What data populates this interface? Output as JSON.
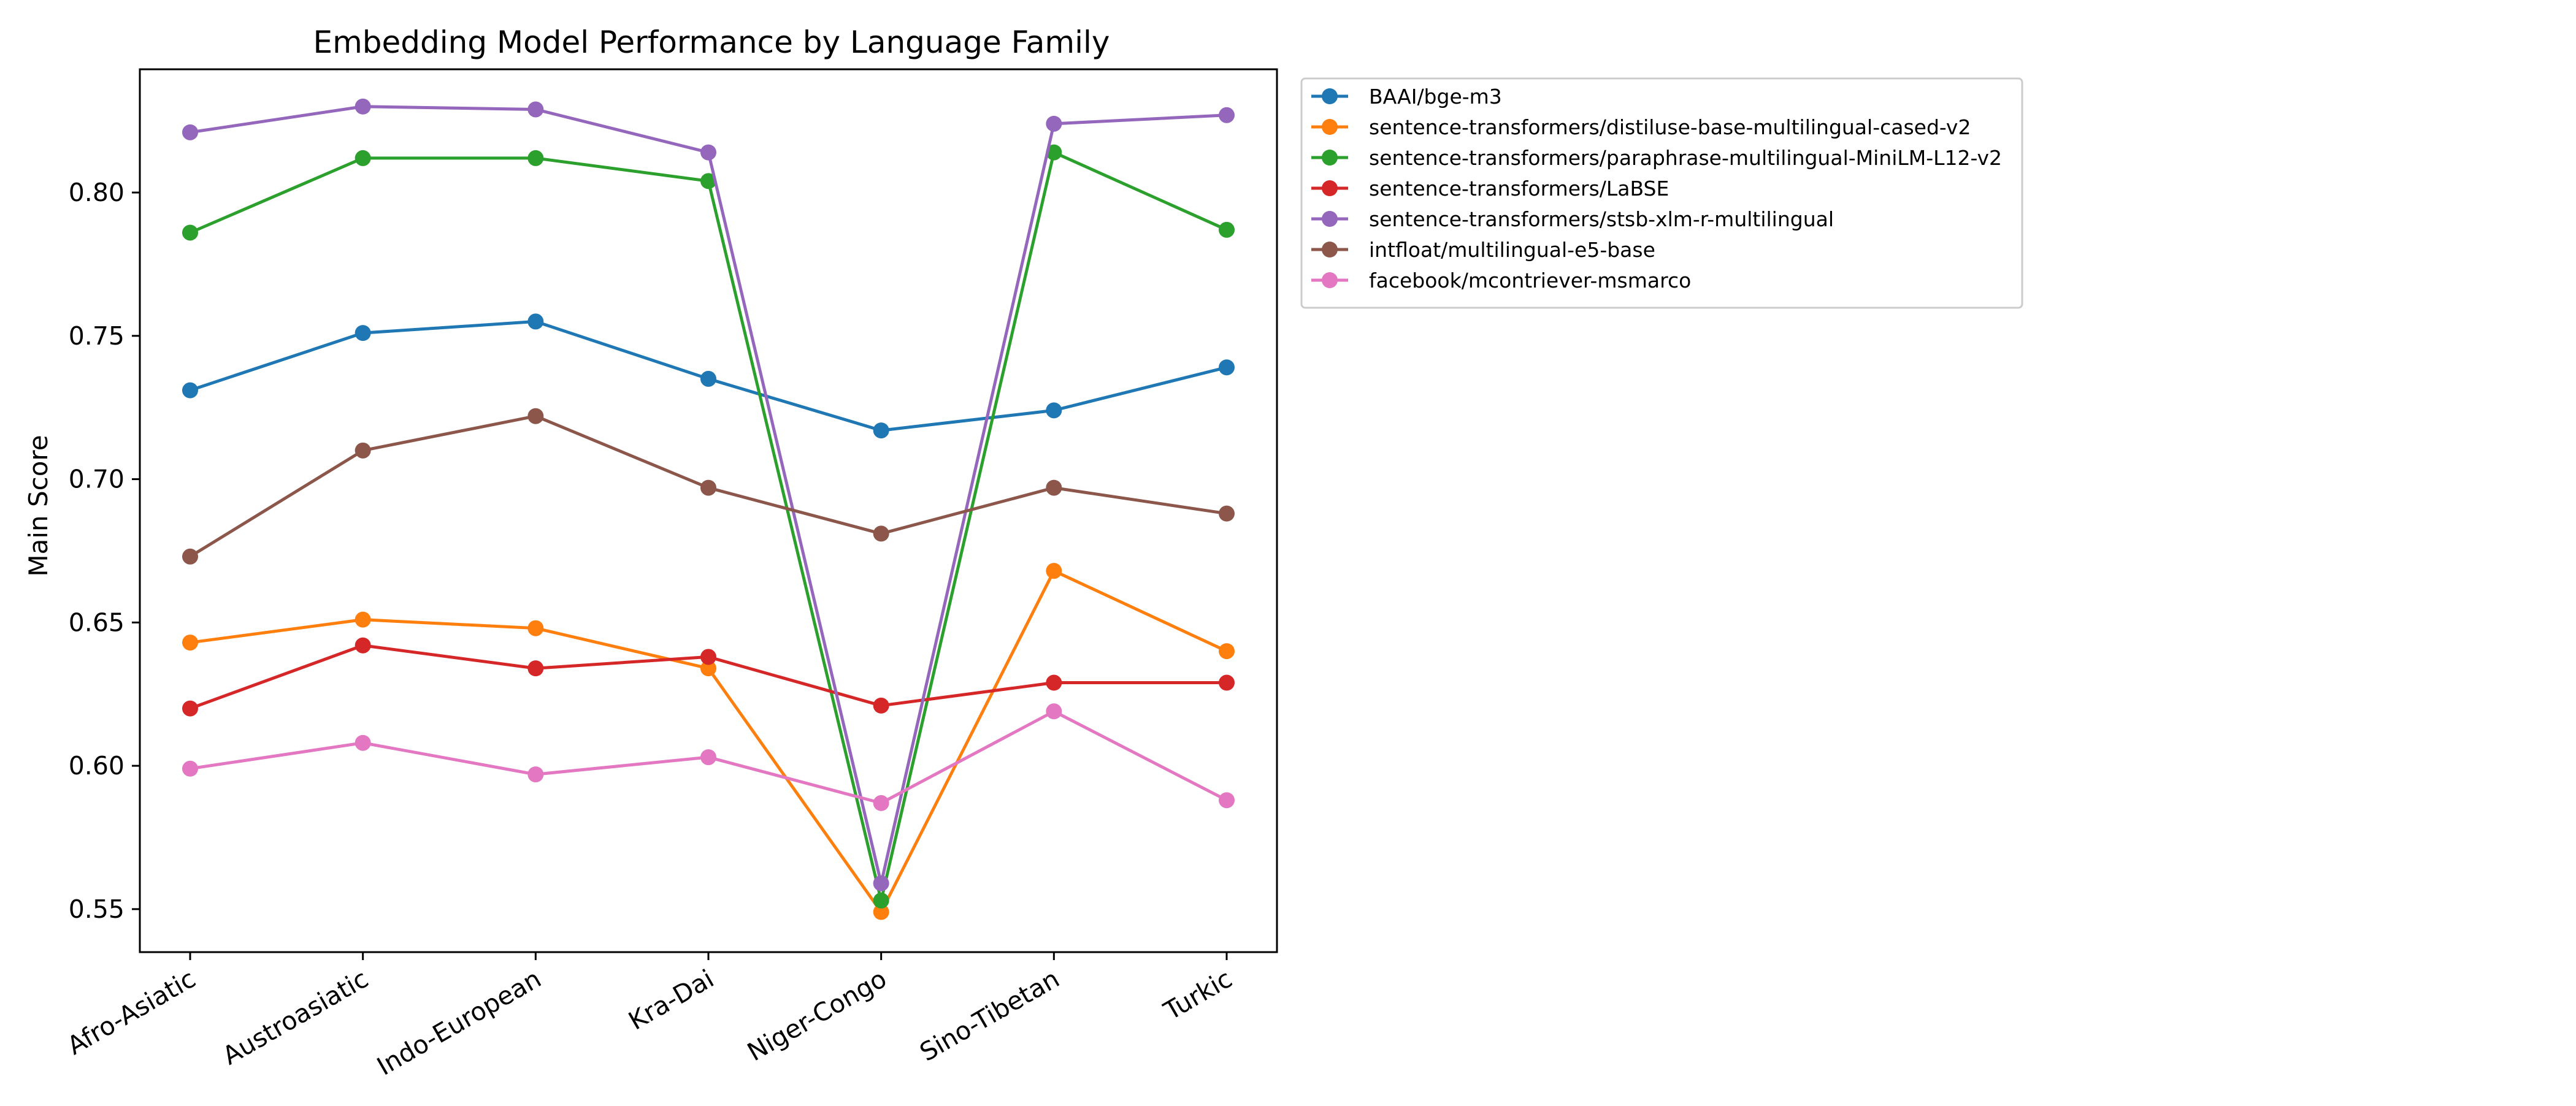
{
  "chart_data": {
    "type": "line",
    "title": "Embedding Model Performance by Language Family",
    "xlabel": "",
    "ylabel": "Main Score",
    "categories": [
      "Afro-Asiatic",
      "Austroasiatic",
      "Indo-European",
      "Kra-Dai",
      "Niger-Congo",
      "Sino-Tibetan",
      "Turkic"
    ],
    "ylim": [
      0.535,
      0.843
    ],
    "yticks": [
      0.55,
      0.6,
      0.65,
      0.7,
      0.75,
      0.8
    ],
    "ytick_labels": [
      "0.55",
      "0.60",
      "0.65",
      "0.70",
      "0.75",
      "0.80"
    ],
    "grid": false,
    "legend_placement": "outside upper right",
    "series": [
      {
        "name": "BAAI/bge-m3",
        "color": "#1f77b4",
        "values": [
          0.731,
          0.751,
          0.755,
          0.735,
          0.717,
          0.724,
          0.739
        ]
      },
      {
        "name": "sentence-transformers/distiluse-base-multilingual-cased-v2",
        "color": "#ff7f0e",
        "values": [
          0.643,
          0.651,
          0.648,
          0.634,
          0.549,
          0.668,
          0.64
        ]
      },
      {
        "name": "sentence-transformers/paraphrase-multilingual-MiniLM-L12-v2",
        "color": "#2ca02c",
        "values": [
          0.786,
          0.812,
          0.812,
          0.804,
          0.553,
          0.814,
          0.787
        ]
      },
      {
        "name": "sentence-transformers/LaBSE",
        "color": "#d62728",
        "values": [
          0.62,
          0.642,
          0.634,
          0.638,
          0.621,
          0.629,
          0.629
        ]
      },
      {
        "name": "sentence-transformers/stsb-xlm-r-multilingual",
        "color": "#9467bd",
        "values": [
          0.821,
          0.83,
          0.829,
          0.814,
          0.559,
          0.824,
          0.827
        ]
      },
      {
        "name": "intfloat/multilingual-e5-base",
        "color": "#8c564b",
        "values": [
          0.673,
          0.71,
          0.722,
          0.697,
          0.681,
          0.697,
          0.688
        ]
      },
      {
        "name": "facebook/mcontriever-msmarco",
        "color": "#e377c2",
        "values": [
          0.599,
          0.608,
          0.597,
          0.603,
          0.587,
          0.619,
          0.588
        ]
      }
    ]
  }
}
